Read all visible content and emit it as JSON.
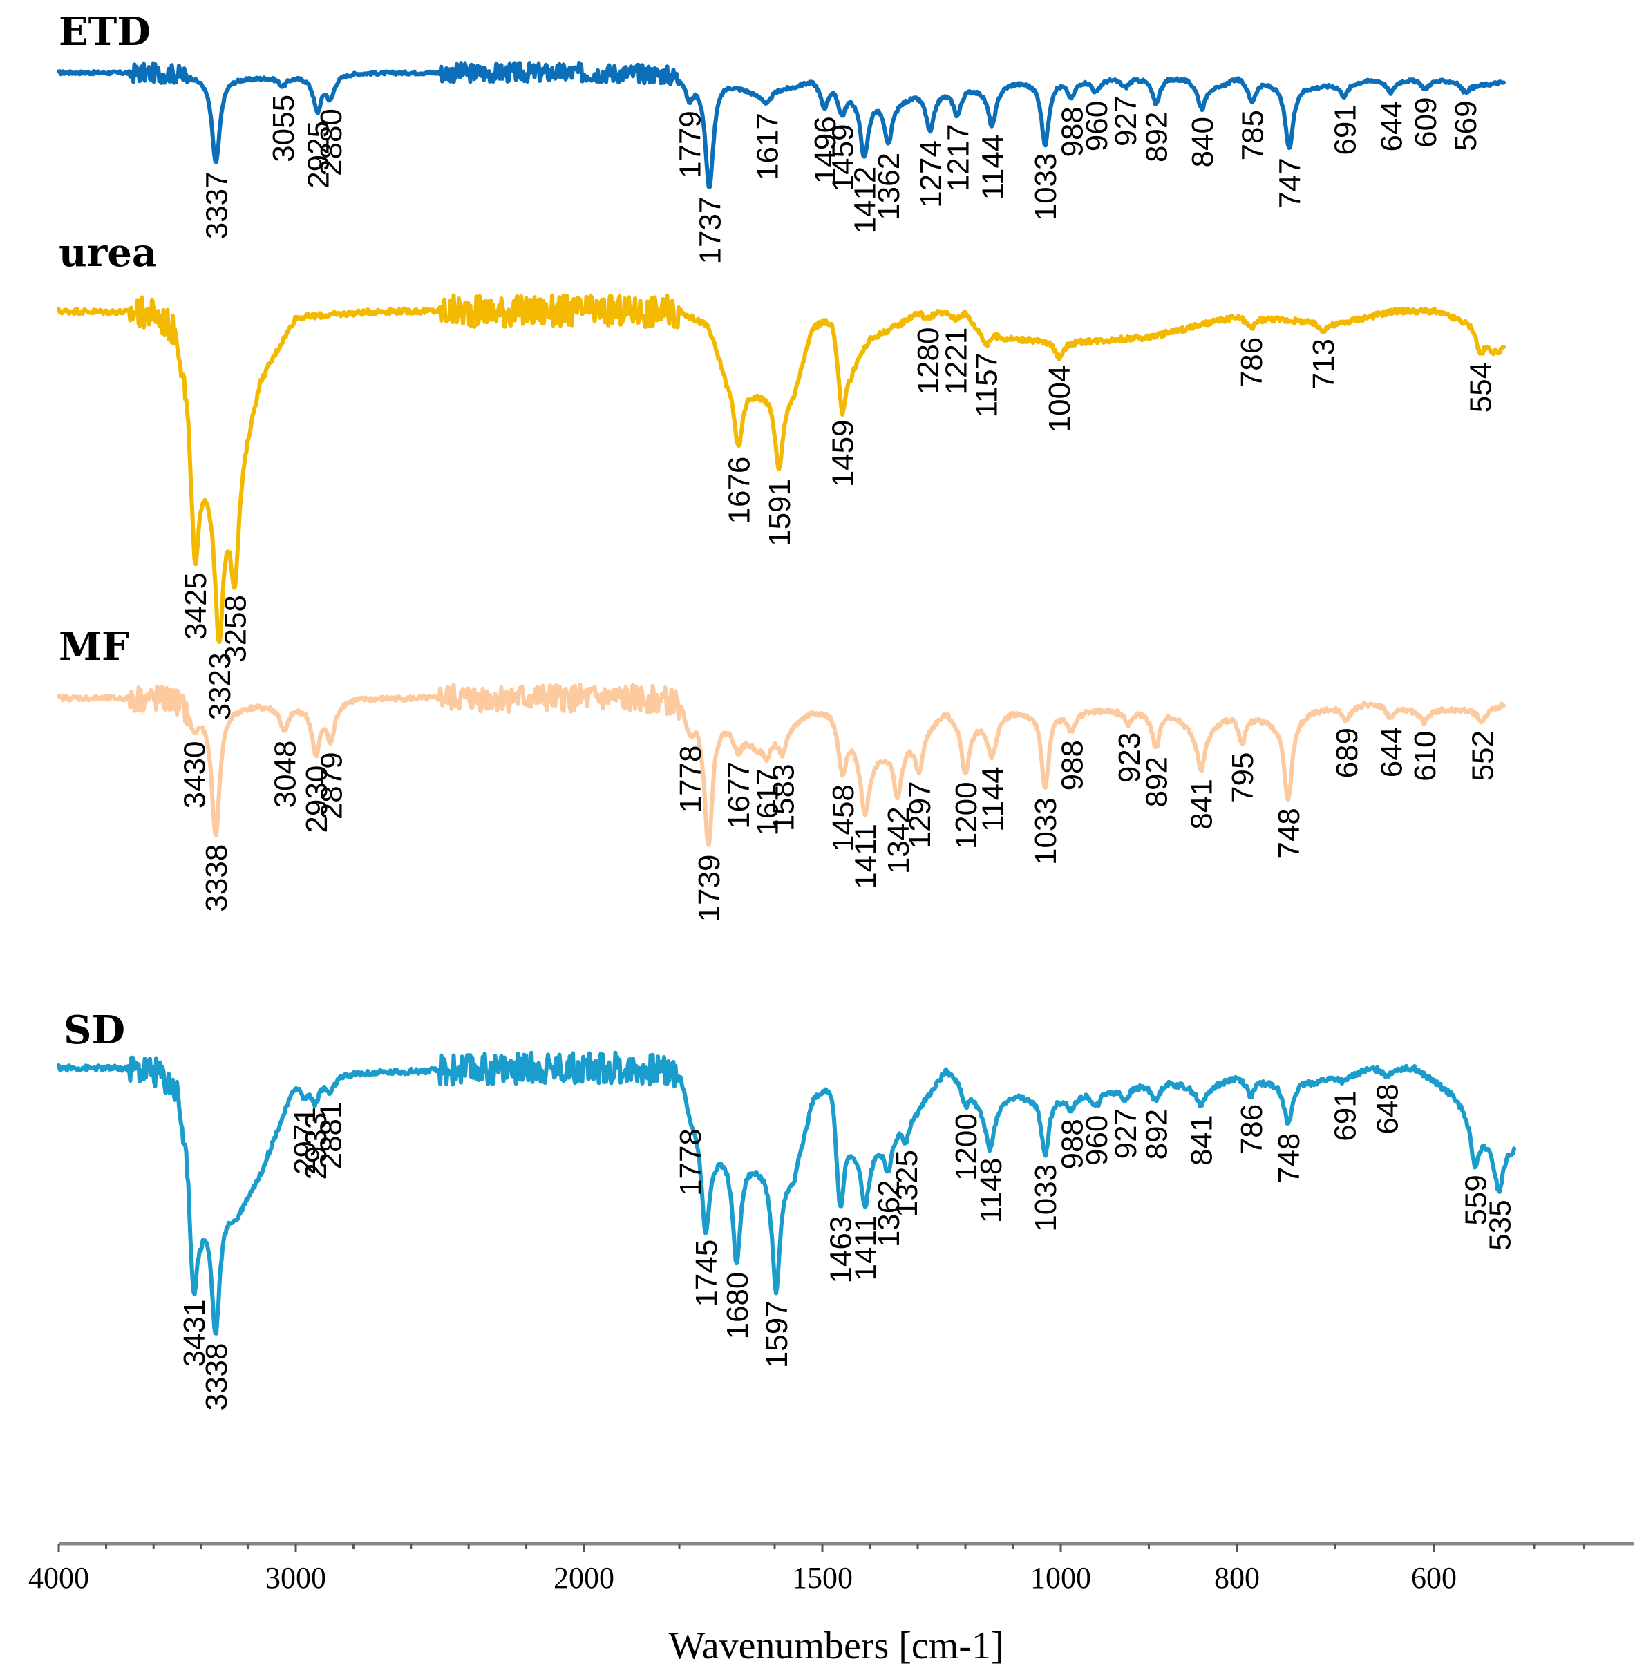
{
  "chart_data": {
    "type": "line",
    "title": "",
    "xlabel": "Wavenumbers [cm-1]",
    "ylabel": "",
    "xlim": [
      4000,
      400
    ],
    "x_scale": "piecewise",
    "x_breakpoints": [
      4000,
      3000,
      2000,
      1500,
      1000,
      800,
      600,
      400
    ],
    "x_ticks": [
      {
        "value": 4000,
        "label": "4000"
      },
      {
        "value": 3000,
        "label": "3000"
      },
      {
        "value": 2000,
        "label": "2000"
      },
      {
        "value": 1500,
        "label": "1500"
      },
      {
        "value": 1000,
        "label": "1000"
      },
      {
        "value": 800,
        "label": "800"
      },
      {
        "value": 600,
        "label": "600"
      }
    ],
    "series": [
      {
        "name": "ETD",
        "color": "#0a6fb8",
        "baseline_points": [
          [
            4000,
            0
          ],
          [
            3500,
            0
          ],
          [
            3420,
            -0.02
          ],
          [
            3340,
            -0.02
          ],
          [
            3200,
            -0.03
          ],
          [
            3000,
            -0.02
          ],
          [
            2800,
            0
          ],
          [
            2200,
            0
          ],
          [
            1800,
            0
          ],
          [
            1700,
            -0.05
          ],
          [
            1640,
            -0.12
          ],
          [
            1560,
            -0.08
          ],
          [
            1520,
            -0.03
          ],
          [
            1480,
            -0.04
          ],
          [
            1440,
            -0.1
          ],
          [
            1400,
            -0.14
          ],
          [
            1340,
            -0.16
          ],
          [
            1300,
            -0.12
          ],
          [
            1240,
            -0.1
          ],
          [
            1200,
            -0.08
          ],
          [
            1160,
            -0.09
          ],
          [
            1100,
            -0.05
          ],
          [
            1060,
            -0.04
          ],
          [
            1040,
            0
          ],
          [
            1000,
            -0.03
          ],
          [
            940,
            -0.03
          ],
          [
            880,
            -0.02
          ],
          [
            860,
            -0.03
          ],
          [
            820,
            -0.08
          ],
          [
            800,
            -0.02
          ],
          [
            760,
            -0.06
          ],
          [
            720,
            -0.08
          ],
          [
            660,
            -0.04
          ],
          [
            620,
            -0.04
          ],
          [
            580,
            -0.05
          ],
          [
            560,
            -0.08
          ],
          [
            530,
            -0.06
          ],
          [
            500,
            -0.04
          ]
        ],
        "peaks": [
          {
            "x": 3337,
            "label": "3337",
            "depth": 1.0
          },
          {
            "x": 3055,
            "label": "3055",
            "depth": 0.1
          },
          {
            "x": 2925,
            "label": "2925",
            "depth": 0.4
          },
          {
            "x": 2880,
            "label": "2880",
            "depth": 0.25
          },
          {
            "x": 1779,
            "label": "1779",
            "depth": 0.25
          },
          {
            "x": 1737,
            "label": "1737",
            "depth": 1.25
          },
          {
            "x": 1617,
            "label": "1617",
            "depth": 0.15
          },
          {
            "x": 1496,
            "label": "1496",
            "depth": 0.3
          },
          {
            "x": 1459,
            "label": "1459",
            "depth": 0.3
          },
          {
            "x": 1412,
            "label": "1412",
            "depth": 0.7
          },
          {
            "x": 1362,
            "label": "1362",
            "depth": 0.5
          },
          {
            "x": 1274,
            "label": "1274",
            "depth": 0.45
          },
          {
            "x": 1217,
            "label": "1217",
            "depth": 0.3
          },
          {
            "x": 1144,
            "label": "1144",
            "depth": 0.45
          },
          {
            "x": 1033,
            "label": "1033",
            "depth": 0.8
          },
          {
            "x": 988,
            "label": "988",
            "depth": 0.2
          },
          {
            "x": 960,
            "label": "960",
            "depth": 0.15
          },
          {
            "x": 927,
            "label": "927",
            "depth": 0.1
          },
          {
            "x": 892,
            "label": "892",
            "depth": 0.3
          },
          {
            "x": 840,
            "label": "840",
            "depth": 0.3
          },
          {
            "x": 785,
            "label": "785",
            "depth": 0.25
          },
          {
            "x": 747,
            "label": "747",
            "depth": 0.75
          },
          {
            "x": 691,
            "label": "691",
            "depth": 0.15
          },
          {
            "x": 644,
            "label": "644",
            "depth": 0.15
          },
          {
            "x": 609,
            "label": "609",
            "depth": 0.1
          },
          {
            "x": 569,
            "label": "569",
            "depth": 0.1
          }
        ]
      },
      {
        "name": "urea",
        "color": "#f3b800",
        "baseline_points": [
          [
            4000,
            0
          ],
          [
            3600,
            0
          ],
          [
            3500,
            -0.05
          ],
          [
            3400,
            -0.5
          ],
          [
            3330,
            -0.7
          ],
          [
            3250,
            -0.6
          ],
          [
            3150,
            -0.25
          ],
          [
            3000,
            -0.02
          ],
          [
            2700,
            0
          ],
          [
            2200,
            0
          ],
          [
            1800,
            0
          ],
          [
            1740,
            -0.05
          ],
          [
            1700,
            -0.25
          ],
          [
            1640,
            -0.3
          ],
          [
            1560,
            -0.3
          ],
          [
            1520,
            -0.05
          ],
          [
            1480,
            0
          ],
          [
            1440,
            -0.2
          ],
          [
            1400,
            -0.1
          ],
          [
            1340,
            -0.05
          ],
          [
            1300,
            0
          ],
          [
            1200,
            0
          ],
          [
            1180,
            -0.05
          ],
          [
            1120,
            -0.1
          ],
          [
            1000,
            -0.12
          ],
          [
            900,
            -0.1
          ],
          [
            800,
            -0.02
          ],
          [
            760,
            -0.03
          ],
          [
            700,
            -0.05
          ],
          [
            640,
            0
          ],
          [
            600,
            0
          ],
          [
            560,
            -0.05
          ],
          [
            540,
            -0.15
          ],
          [
            500,
            -0.12
          ]
        ],
        "peaks": [
          {
            "x": 3425,
            "label": "3425",
            "depth": 1.0
          },
          {
            "x": 3323,
            "label": "3323",
            "depth": 0.95
          },
          {
            "x": 3258,
            "label": "3258",
            "depth": 0.7
          },
          {
            "x": 1676,
            "label": "1676",
            "depth": 0.45
          },
          {
            "x": 1591,
            "label": "1591",
            "depth": 0.55
          },
          {
            "x": 1459,
            "label": "1459",
            "depth": 0.5
          },
          {
            "x": 1280,
            "label": "1280",
            "depth": 0.05
          },
          {
            "x": 1221,
            "label": "1221",
            "depth": 0.05
          },
          {
            "x": 1157,
            "label": "1157",
            "depth": 0.1
          },
          {
            "x": 1004,
            "label": "1004",
            "depth": 0.1
          },
          {
            "x": 786,
            "label": "786",
            "depth": 0.08
          },
          {
            "x": 713,
            "label": "713",
            "depth": 0.05
          },
          {
            "x": 554,
            "label": "554",
            "depth": 0.15
          }
        ]
      },
      {
        "name": "MF",
        "color": "#fdc99e",
        "baseline_points": [
          [
            4000,
            0
          ],
          [
            3500,
            0
          ],
          [
            3420,
            -0.05
          ],
          [
            3340,
            -0.05
          ],
          [
            3200,
            -0.03
          ],
          [
            3000,
            -0.03
          ],
          [
            2800,
            0
          ],
          [
            2200,
            0
          ],
          [
            1800,
            0
          ],
          [
            1700,
            -0.1
          ],
          [
            1640,
            -0.2
          ],
          [
            1560,
            -0.1
          ],
          [
            1520,
            -0.05
          ],
          [
            1480,
            -0.05
          ],
          [
            1440,
            -0.15
          ],
          [
            1400,
            -0.25
          ],
          [
            1340,
            -0.2
          ],
          [
            1300,
            -0.15
          ],
          [
            1240,
            -0.05
          ],
          [
            1200,
            -0.1
          ],
          [
            1160,
            -0.1
          ],
          [
            1100,
            -0.05
          ],
          [
            1060,
            -0.05
          ],
          [
            1040,
            0
          ],
          [
            1000,
            -0.05
          ],
          [
            940,
            -0.05
          ],
          [
            880,
            -0.05
          ],
          [
            840,
            -0.15
          ],
          [
            800,
            -0.05
          ],
          [
            760,
            -0.1
          ],
          [
            720,
            -0.05
          ],
          [
            660,
            -0.02
          ],
          [
            620,
            -0.05
          ],
          [
            580,
            -0.05
          ],
          [
            552,
            -0.05
          ],
          [
            500,
            0
          ]
        ],
        "peaks": [
          {
            "x": 3430,
            "label": "3430",
            "depth": 0.15
          },
          {
            "x": 3338,
            "label": "3338",
            "depth": 1.0
          },
          {
            "x": 3048,
            "label": "3048",
            "depth": 0.2
          },
          {
            "x": 2930,
            "label": "2930",
            "depth": 0.4
          },
          {
            "x": 2879,
            "label": "2879",
            "depth": 0.3
          },
          {
            "x": 1778,
            "label": "1778",
            "depth": 0.2
          },
          {
            "x": 1739,
            "label": "1739",
            "depth": 1.05
          },
          {
            "x": 1677,
            "label": "1677",
            "depth": 0.15
          },
          {
            "x": 1617,
            "label": "1617",
            "depth": 0.15
          },
          {
            "x": 1583,
            "label": "1583",
            "depth": 0.2
          },
          {
            "x": 1458,
            "label": "1458",
            "depth": 0.4
          },
          {
            "x": 1411,
            "label": "1411",
            "depth": 0.5
          },
          {
            "x": 1342,
            "label": "1342",
            "depth": 0.4
          },
          {
            "x": 1297,
            "label": "1297",
            "depth": 0.3
          },
          {
            "x": 1200,
            "label": "1200",
            "depth": 0.4
          },
          {
            "x": 1144,
            "label": "1144",
            "depth": 0.3
          },
          {
            "x": 1033,
            "label": "1033",
            "depth": 0.7
          },
          {
            "x": 988,
            "label": "988",
            "depth": 0.15
          },
          {
            "x": 923,
            "label": "923",
            "depth": 0.1
          },
          {
            "x": 892,
            "label": "892",
            "depth": 0.3
          },
          {
            "x": 841,
            "label": "841",
            "depth": 0.3
          },
          {
            "x": 795,
            "label": "795",
            "depth": 0.25
          },
          {
            "x": 748,
            "label": "748",
            "depth": 0.65
          },
          {
            "x": 689,
            "label": "689",
            "depth": 0.1
          },
          {
            "x": 644,
            "label": "644",
            "depth": 0.1
          },
          {
            "x": 610,
            "label": "610",
            "depth": 0.1
          },
          {
            "x": 552,
            "label": "552",
            "depth": 0.1
          }
        ]
      },
      {
        "name": "SD",
        "color": "#1a9ccc",
        "baseline_points": [
          [
            4000,
            0
          ],
          [
            3600,
            0
          ],
          [
            3500,
            -0.05
          ],
          [
            3400,
            -0.5
          ],
          [
            3330,
            -0.5
          ],
          [
            3250,
            -0.55
          ],
          [
            3150,
            -0.4
          ],
          [
            3000,
            -0.05
          ],
          [
            2800,
            -0.02
          ],
          [
            2200,
            0
          ],
          [
            1800,
            0
          ],
          [
            1740,
            -0.3
          ],
          [
            1700,
            -0.3
          ],
          [
            1640,
            -0.35
          ],
          [
            1560,
            -0.4
          ],
          [
            1520,
            -0.1
          ],
          [
            1480,
            0
          ],
          [
            1440,
            -0.25
          ],
          [
            1400,
            -0.3
          ],
          [
            1340,
            -0.2
          ],
          [
            1300,
            -0.15
          ],
          [
            1240,
            0
          ],
          [
            1200,
            -0.05
          ],
          [
            1160,
            -0.15
          ],
          [
            1100,
            -0.1
          ],
          [
            1060,
            -0.1
          ],
          [
            1040,
            -0.08
          ],
          [
            1000,
            -0.1
          ],
          [
            940,
            -0.08
          ],
          [
            880,
            -0.05
          ],
          [
            840,
            -0.08
          ],
          [
            800,
            -0.03
          ],
          [
            760,
            -0.05
          ],
          [
            720,
            -0.05
          ],
          [
            660,
            0
          ],
          [
            620,
            0
          ],
          [
            580,
            -0.1
          ],
          [
            540,
            -0.3
          ],
          [
            500,
            -0.3
          ]
        ],
        "peaks": [
          {
            "x": 3431,
            "label": "3431",
            "depth": 0.85
          },
          {
            "x": 3338,
            "label": "3338",
            "depth": 0.9
          },
          {
            "x": 2971,
            "label": "2971",
            "depth": 0.1
          },
          {
            "x": 2933,
            "label": "2933",
            "depth": 0.15
          },
          {
            "x": 2881,
            "label": "2881",
            "depth": 0.1
          },
          {
            "x": 1778,
            "label": "1778",
            "depth": 0.1
          },
          {
            "x": 1745,
            "label": "1745",
            "depth": 0.6
          },
          {
            "x": 1680,
            "label": "1680",
            "depth": 0.75
          },
          {
            "x": 1597,
            "label": "1597",
            "depth": 0.85
          },
          {
            "x": 1463,
            "label": "1463",
            "depth": 0.75
          },
          {
            "x": 1411,
            "label": "1411",
            "depth": 0.4
          },
          {
            "x": 1362,
            "label": "1362",
            "depth": 0.25
          },
          {
            "x": 1325,
            "label": "1325",
            "depth": 0.15
          },
          {
            "x": 1200,
            "label": "1200",
            "depth": 0.15
          },
          {
            "x": 1148,
            "label": "1148",
            "depth": 0.3
          },
          {
            "x": 1033,
            "label": "1033",
            "depth": 0.45
          },
          {
            "x": 988,
            "label": "988",
            "depth": 0.1
          },
          {
            "x": 960,
            "label": "960",
            "depth": 0.1
          },
          {
            "x": 927,
            "label": "927",
            "depth": 0.08
          },
          {
            "x": 892,
            "label": "892",
            "depth": 0.12
          },
          {
            "x": 841,
            "label": "841",
            "depth": 0.12
          },
          {
            "x": 786,
            "label": "786",
            "depth": 0.12
          },
          {
            "x": 748,
            "label": "748",
            "depth": 0.3
          },
          {
            "x": 691,
            "label": "691",
            "depth": 0.05
          },
          {
            "x": 648,
            "label": "648",
            "depth": 0.05
          },
          {
            "x": 559,
            "label": "559",
            "depth": 0.3
          },
          {
            "x": 535,
            "label": "535",
            "depth": 0.3
          }
        ]
      }
    ]
  }
}
